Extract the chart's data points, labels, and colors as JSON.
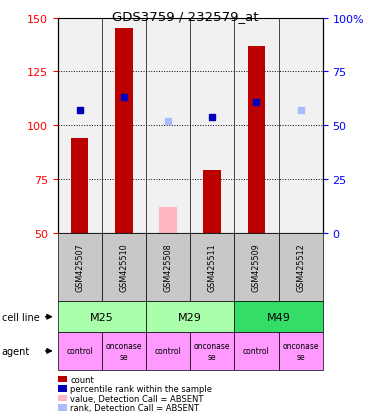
{
  "title": "GDS3759 / 232579_at",
  "samples": [
    "GSM425507",
    "GSM425510",
    "GSM425508",
    "GSM425511",
    "GSM425509",
    "GSM425512"
  ],
  "count_values": [
    94,
    145,
    62,
    79,
    137,
    50
  ],
  "percentile_values": [
    107,
    113,
    102,
    104,
    111,
    107
  ],
  "count_absent": [
    false,
    false,
    true,
    false,
    false,
    true
  ],
  "percentile_absent": [
    false,
    false,
    true,
    false,
    false,
    true
  ],
  "bar_color_present": "#BB0000",
  "bar_color_absent": "#FFB6C1",
  "dot_color_present": "#0000BB",
  "dot_color_absent": "#AABBFF",
  "ylim_left": [
    50,
    150
  ],
  "ylim_right": [
    0,
    100
  ],
  "yticks_left": [
    50,
    75,
    100,
    125,
    150
  ],
  "yticks_right": [
    0,
    25,
    50,
    75,
    100
  ],
  "sample_bg_color": "#C8C8C8",
  "bar_width": 0.4,
  "cell_line_groups": [
    [
      "M25",
      0,
      2
    ],
    [
      "M29",
      2,
      4
    ],
    [
      "M49",
      4,
      6
    ]
  ],
  "cell_line_colors": {
    "M25": "#AAFFAA",
    "M29": "#AAFFAA",
    "M49": "#33DD66"
  },
  "agent_labels": [
    "control",
    "onconase\nse",
    "control",
    "onconase\nse",
    "control",
    "onconase\nse"
  ],
  "agent_color": "#FF99FF",
  "legend_colors": [
    "#BB0000",
    "#0000BB",
    "#FFB6C1",
    "#AABBFF"
  ],
  "legend_labels": [
    "count",
    "percentile rank within the sample",
    "value, Detection Call = ABSENT",
    "rank, Detection Call = ABSENT"
  ]
}
